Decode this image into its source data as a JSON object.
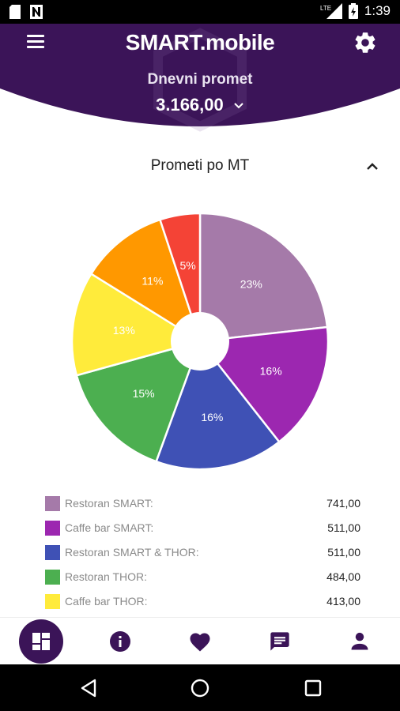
{
  "status_bar": {
    "time": "1:39",
    "network_label": "LTE"
  },
  "header": {
    "title": "SMART.mobile",
    "subtitle": "Dnevni promet",
    "total": "3.166,00"
  },
  "section": {
    "title": "Prometi po MT"
  },
  "chart_data": {
    "type": "pie",
    "categories": [
      "Restoran SMART:",
      "Caffe bar SMART:",
      "Restoran SMART & THOR:",
      "Restoran THOR:",
      "Caffe bar THOR:",
      "",
      ""
    ],
    "values": [
      23,
      16,
      16,
      15,
      13,
      11,
      5
    ],
    "labels": [
      "23%",
      "16%",
      "16%",
      "15%",
      "13%",
      "11%",
      "5%"
    ],
    "colors": [
      "#a57aa9",
      "#9c27b0",
      "#3f51b5",
      "#4caf50",
      "#ffeb3b",
      "#ff9800",
      "#f44336"
    ],
    "donut_hole": true
  },
  "legend": [
    {
      "label": "Restoran SMART:",
      "value": "741,00",
      "color": "#a57aa9"
    },
    {
      "label": "Caffe bar SMART:",
      "value": "511,00",
      "color": "#9c27b0"
    },
    {
      "label": "Restoran SMART & THOR:",
      "value": "511,00",
      "color": "#3f51b5"
    },
    {
      "label": "Restoran THOR:",
      "value": "484,00",
      "color": "#4caf50"
    },
    {
      "label": "Caffe bar THOR:",
      "value": "413,00",
      "color": "#ffeb3b"
    }
  ],
  "bottom_nav": {
    "items": [
      {
        "icon": "dashboard-icon",
        "active": true
      },
      {
        "icon": "info-icon",
        "active": false
      },
      {
        "icon": "heart-icon",
        "active": false
      },
      {
        "icon": "chat-icon",
        "active": false
      },
      {
        "icon": "person-icon",
        "active": false
      }
    ]
  },
  "theme": {
    "primary": "#3b1458",
    "nav_icon": "#3b1458"
  }
}
